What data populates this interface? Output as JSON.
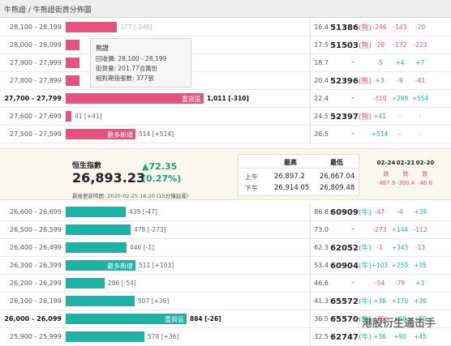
{
  "title": "牛熊證 / 牛熊證街貨分佈圖",
  "colors": {
    "bear": "#e8517f",
    "bull": "#1bb3a5",
    "up": "#1aa27a"
  },
  "tooltip": {
    "title": "熊證",
    "recall": "回收價: 28,100 - 28,199",
    "outstanding": "街貨量: 201.77百萬份",
    "futures": "相對期指張數: 377張"
  },
  "bear_rows": [
    {
      "range": "28,100 - 28,199",
      "bar_value": 377,
      "value": "377 [-246]",
      "pct": "16.4",
      "index": "51386",
      "tag": "(熊)",
      "d1": "-246",
      "d2": "-143",
      "d3": "-20"
    },
    {
      "range": "28,000 - 28,099",
      "bar_value": 100,
      "value": "",
      "pct": "17.5",
      "index": "51503",
      "tag": "(熊)",
      "d1": "-28",
      "d2": "-172",
      "d3": "-223"
    },
    {
      "range": "27,900 - 27,999",
      "bar_value": 100,
      "value": "",
      "pct": "18.7",
      "index": "-",
      "tag": "",
      "d1": "-5",
      "d2": "+4",
      "d3": "+7"
    },
    {
      "range": "27,800 - 27,899",
      "bar_value": 100,
      "value": "",
      "pct": "20.4",
      "index": "52396",
      "tag": "(熊)",
      "d1": "+3",
      "d2": "-9",
      "d3": "-41"
    },
    {
      "range": "27,700 - 27,799",
      "bar_value": 1011,
      "value": "1,011 [-310]",
      "label": "重貨區",
      "pct": "22.4",
      "index": "-",
      "tag": "",
      "d1": "-310",
      "d2": "+269",
      "d3": "+554"
    },
    {
      "range": "27,600 - 27,699",
      "bar_value": 41,
      "value": "41 [+41]",
      "pct": "24.5",
      "index": "52397",
      "tag": "(熊)",
      "d1": "+41",
      "d2": "-",
      "d3": "-"
    },
    {
      "range": "27,500 - 27,599",
      "bar_value": 514,
      "value": "514 [+514]",
      "label": "最多新增",
      "pct": "26.5",
      "index": "-",
      "tag": "",
      "d1": "+514",
      "d2": "-",
      "d3": "-"
    }
  ],
  "panel": {
    "label": "恒生指數",
    "value": "26,893.23",
    "change": "▲72.35",
    "change_pct": "(0.27%)",
    "updated": "最後更新時間: 2020-02-25 16:20 (15分鐘延遲)",
    "high_label": "最高",
    "low_label": "最低",
    "am_label": "上午",
    "pm_label": "下午",
    "am_high": "26,897.2",
    "am_low": "26,667.04",
    "pm_high": "26,914.05",
    "pm_low": "26,809.48",
    "dates": [
      "02-24",
      "02-21",
      "02-20"
    ],
    "date_labels": [
      "跌",
      "跌",
      "跌"
    ],
    "date_values": [
      "-487.9",
      "-300.4",
      "-46.6"
    ]
  },
  "bull_rows": [
    {
      "range": "26,600 - 26,699",
      "bar_value": 439,
      "value": "439 [-47]",
      "pct": "86.8",
      "index": "60909",
      "tag": "(牛)",
      "d1": "-47",
      "d2": "-4",
      "d3": "+39"
    },
    {
      "range": "26,500 - 26,599",
      "bar_value": 478,
      "value": "478 [-273]",
      "pct": "73.0",
      "index": "-",
      "tag": "",
      "d1": "-273",
      "d2": "+144",
      "d3": "-112"
    },
    {
      "range": "26,400 - 26,499",
      "bar_value": 446,
      "value": "446 [-1]",
      "pct": "62.3",
      "index": "62052",
      "tag": "(牛)",
      "d1": "-1",
      "d2": "+343",
      "d3": "-13"
    },
    {
      "range": "26,300 - 26,399",
      "bar_value": 511,
      "value": "511 [+103]",
      "label": "最多新增",
      "pct": "53.4",
      "index": "60904",
      "tag": "(牛)",
      "d1": "+103",
      "d2": "+253",
      "d3": "+35"
    },
    {
      "range": "26,200 - 26,299",
      "bar_value": 286,
      "value": "286 [-54]",
      "pct": "46.6",
      "index": "-",
      "tag": "",
      "d1": "-54",
      "d2": "-79",
      "d3": "+1"
    },
    {
      "range": "26,100 - 26,199",
      "bar_value": 507,
      "value": "507 [+36]",
      "pct": "41.3",
      "index": "65572",
      "tag": "(牛)",
      "d1": "+36",
      "d2": "+170",
      "d3": "+36"
    },
    {
      "range": "26,000 - 26,099",
      "bar_value": 884,
      "value": "884 [-26]",
      "label": "重貨區",
      "pct": "36.5",
      "index": "65570",
      "tag": "(牛)",
      "d1": "-26",
      "d2": "+90",
      "d3": "+39"
    },
    {
      "range": "25,900 - 25,999",
      "bar_value": 578,
      "value": "578 [+36]",
      "pct": "32.5",
      "index": "62747",
      "tag": "(牛)",
      "d1": "+36",
      "d2": "+90",
      "d3": "+45"
    }
  ],
  "watermark": "港股衍生通击手"
}
